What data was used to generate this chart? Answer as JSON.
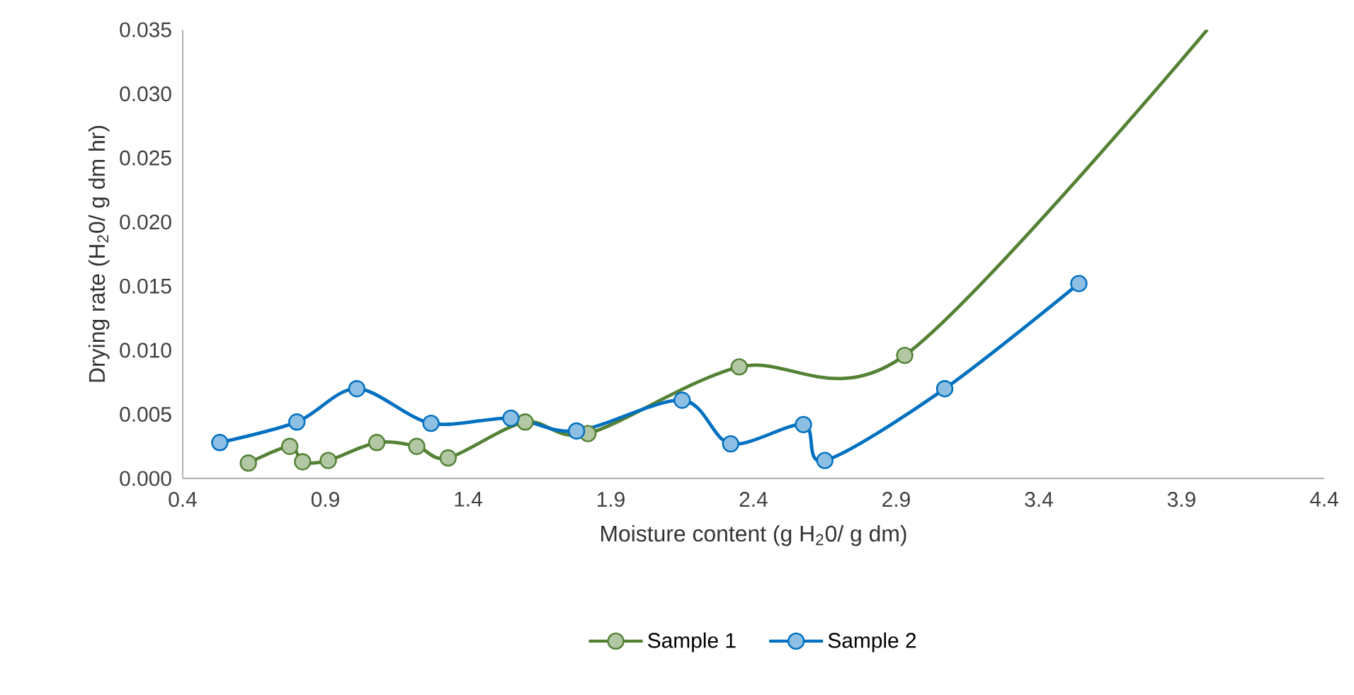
{
  "chart_data": {
    "type": "line",
    "xlabel": "Moisture content (g H$_{2}$0/ g dm)",
    "ylabel": "Drying rate (H$_{2}$0/ g dm hr)",
    "xlim": [
      0.4,
      4.4
    ],
    "xticks": [
      {
        "value": 0.4,
        "label": "0.4"
      },
      {
        "value": 0.9,
        "label": "0.9"
      },
      {
        "value": 1.4,
        "label": "1.4"
      },
      {
        "value": 1.9,
        "label": "1.9"
      },
      {
        "value": 2.4,
        "label": "2.4"
      },
      {
        "value": 2.9,
        "label": "2.9"
      },
      {
        "value": 3.4,
        "label": "3.4"
      },
      {
        "value": 3.9,
        "label": "3.9"
      },
      {
        "value": 4.4,
        "label": "4.4"
      }
    ],
    "ylim": [
      0,
      0.035
    ],
    "yticks": [
      {
        "value": 0,
        "label": "0.000"
      },
      {
        "value": 0.005,
        "label": "0.005"
      },
      {
        "value": 0.01,
        "label": "0.010"
      },
      {
        "value": 0.015,
        "label": "0.015"
      },
      {
        "value": 0.02,
        "label": "0.020"
      },
      {
        "value": 0.025,
        "label": "0.025"
      },
      {
        "value": 0.03,
        "label": "0.030"
      },
      {
        "value": 0.035,
        "label": "0.035"
      }
    ],
    "grid": false,
    "legend": "bottom",
    "marker": "circle",
    "line_style": "solid",
    "series": [
      {
        "name": "Sample 1",
        "color": "#548235",
        "x": [
          0.63,
          0.775,
          0.82,
          0.91,
          1.08,
          1.22,
          1.33,
          1.6,
          1.82,
          2.35,
          2.93,
          3.99
        ],
        "values": [
          0.0012,
          0.0025,
          0.0013,
          0.0014,
          0.0028,
          0.0025,
          0.0016,
          0.0044,
          0.0035,
          0.0087,
          0.0096,
          0.035
        ]
      },
      {
        "name": "Sample 2",
        "color": "#0070c0",
        "x": [
          0.53,
          0.8,
          1.01,
          1.27,
          1.55,
          1.78,
          2.15,
          2.32,
          2.575,
          2.65,
          3.07,
          3.54
        ],
        "values": [
          0.0028,
          0.0044,
          0.007,
          0.0043,
          0.0047,
          0.0037,
          0.0061,
          0.0027,
          0.0042,
          0.0014,
          0.007,
          0.0152
        ]
      }
    ]
  }
}
